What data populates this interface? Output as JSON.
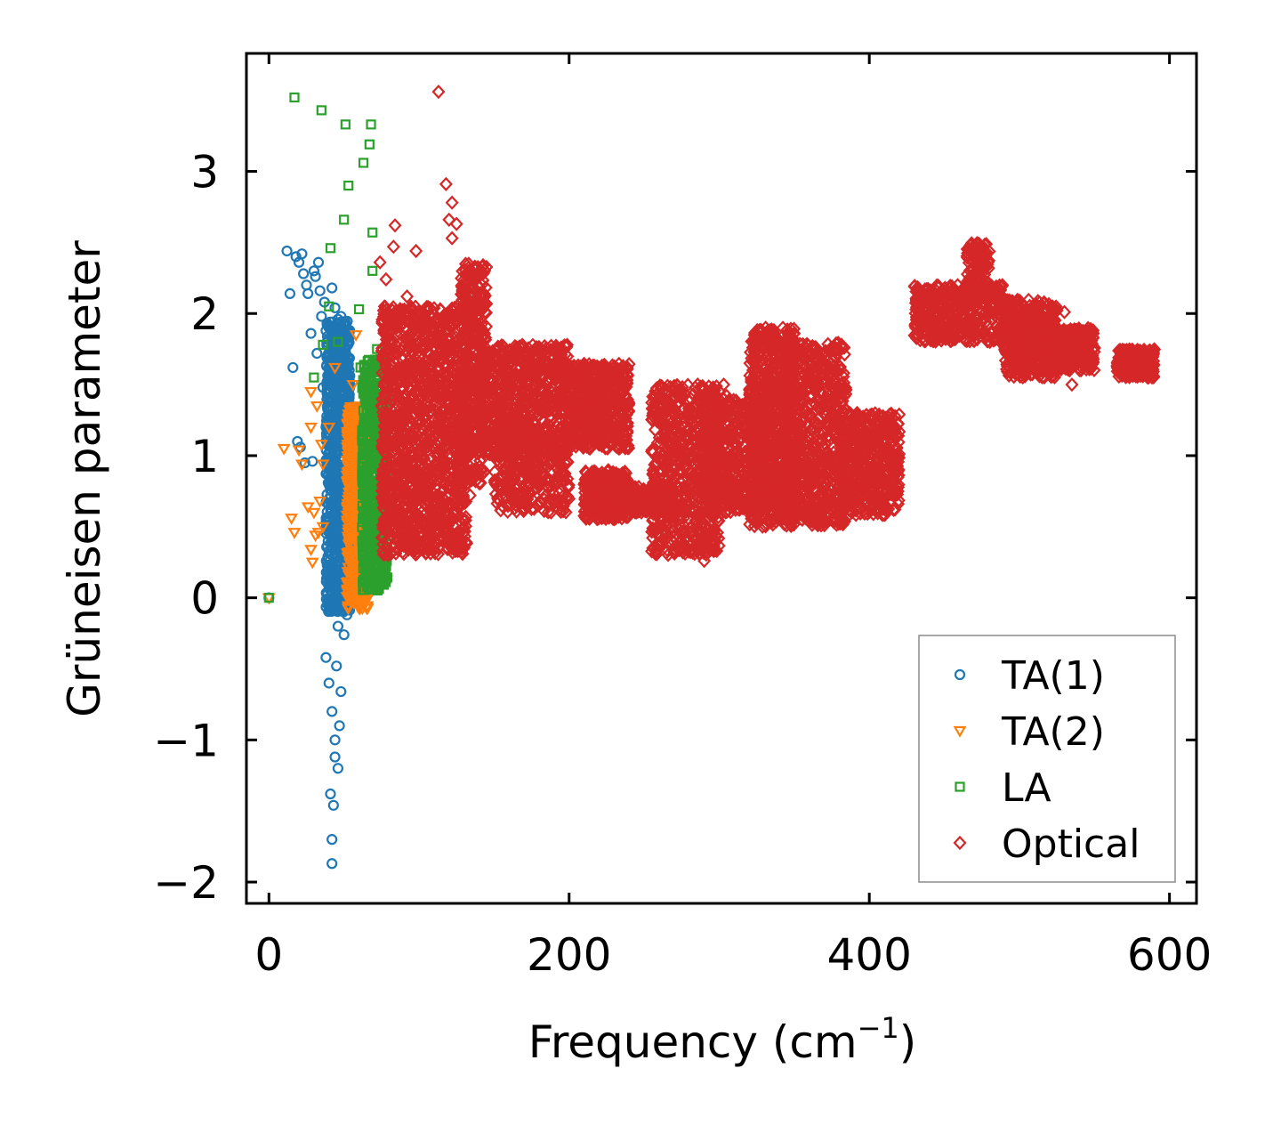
{
  "chart_data": {
    "type": "scatter",
    "title": "",
    "xlabel": "Frequency (cm",
    "xlabel_sup": "−1",
    "xlabel_close": ")",
    "ylabel": "Grüneisen parameter",
    "xlim": [
      -15,
      618
    ],
    "ylim": [
      -2.15,
      3.83
    ],
    "xticks": [
      0,
      200,
      400,
      600
    ],
    "xtick_labels": [
      "0",
      "200",
      "400",
      "600"
    ],
    "yticks": [
      -2,
      -1,
      0,
      1,
      2,
      3
    ],
    "ytick_labels": [
      "−2",
      "−1",
      "0",
      "1",
      "2",
      "3"
    ],
    "grid": false,
    "legend_position": "lower-right",
    "series": [
      {
        "name": "TA(1)",
        "marker": "circle",
        "color": "#1f77b4",
        "points": [
          [
            0,
            0
          ],
          [
            12,
            2.44
          ],
          [
            14,
            2.14
          ],
          [
            16,
            1.62
          ],
          [
            18,
            2.4
          ],
          [
            19,
            1.1
          ],
          [
            20,
            2.36
          ],
          [
            21,
            1.06
          ],
          [
            22,
            2.42
          ],
          [
            23,
            2.28
          ],
          [
            25,
            2.2
          ],
          [
            26,
            2.14
          ],
          [
            24,
            0.95
          ],
          [
            28,
            1.86
          ],
          [
            29,
            0.96
          ],
          [
            30,
            2.3
          ],
          [
            31,
            2.26
          ],
          [
            32,
            1.72
          ],
          [
            33,
            2.36
          ],
          [
            34,
            2.16
          ],
          [
            35,
            1.98
          ],
          [
            36,
            1.48
          ],
          [
            37,
            2.08
          ],
          [
            38,
            1.88
          ],
          [
            40,
            1.9
          ],
          [
            42,
            2.18
          ],
          [
            44,
            2.04
          ],
          [
            46,
            1.96
          ],
          [
            48,
            1.98
          ],
          [
            50,
            1.52
          ],
          [
            38,
            1.2
          ],
          [
            40,
            0.8
          ],
          [
            42,
            0.4
          ],
          [
            44,
            0.1
          ],
          [
            46,
            -0.2
          ],
          [
            38,
            -0.42
          ],
          [
            40,
            -0.6
          ],
          [
            42,
            -0.8
          ],
          [
            44,
            -1.0
          ],
          [
            46,
            -1.2
          ],
          [
            41,
            -1.38
          ],
          [
            43,
            -1.46
          ],
          [
            42,
            -1.7
          ],
          [
            42,
            -1.87
          ],
          [
            44,
            -1.12
          ],
          [
            48,
            -0.66
          ],
          [
            50,
            -0.26
          ],
          [
            52,
            -0.12
          ],
          [
            47,
            -0.9
          ],
          [
            45,
            -0.48
          ]
        ],
        "bands": [
          {
            "x": [
              38,
              54
            ],
            "y": [
              -0.1,
              1.95
            ],
            "count": 900
          }
        ]
      },
      {
        "name": "TA(2)",
        "marker": "triangle-down",
        "color": "#ff7f0e",
        "points": [
          [
            0,
            0
          ],
          [
            10,
            1.05
          ],
          [
            15,
            0.56
          ],
          [
            17,
            0.46
          ],
          [
            20,
            1.04
          ],
          [
            22,
            0.94
          ],
          [
            26,
            0.64
          ],
          [
            28,
            1.2
          ],
          [
            28,
            0.34
          ],
          [
            29,
            0.25
          ],
          [
            30,
            0.6
          ],
          [
            31,
            0.44
          ],
          [
            33,
            0.46
          ],
          [
            34,
            0.68
          ],
          [
            35,
            1.08
          ],
          [
            36,
            0.94
          ],
          [
            28,
            1.45
          ],
          [
            32,
            1.35
          ],
          [
            36,
            0.5
          ],
          [
            40,
            1.2
          ],
          [
            44,
            1.62
          ],
          [
            58,
            1.85
          ],
          [
            56,
            1.5
          ]
        ],
        "bands": [
          {
            "x": [
              52,
              66
            ],
            "y": [
              -0.08,
              1.35
            ],
            "count": 700
          }
        ]
      },
      {
        "name": "LA",
        "marker": "square",
        "color": "#2ca02c",
        "points": [
          [
            0,
            0
          ],
          [
            17,
            3.52
          ],
          [
            35,
            3.43
          ],
          [
            51,
            3.33
          ],
          [
            68,
            3.33
          ],
          [
            67,
            3.19
          ],
          [
            63,
            3.06
          ],
          [
            53,
            2.9
          ],
          [
            50,
            2.66
          ],
          [
            69,
            2.57
          ],
          [
            41,
            2.46
          ],
          [
            69,
            2.3
          ],
          [
            60,
            2.03
          ],
          [
            40,
            2.05
          ],
          [
            36,
            1.78
          ],
          [
            30,
            1.55
          ],
          [
            72,
            1.75
          ],
          [
            61,
            1.62
          ],
          [
            46,
            1.8
          ],
          [
            66,
            0.2
          ],
          [
            68,
            0.1
          ],
          [
            72,
            0.06
          ]
        ],
        "bands": [
          {
            "x": [
              62,
              79
            ],
            "y": [
              0.05,
              1.68
            ],
            "count": 600
          }
        ]
      },
      {
        "name": "Optical",
        "marker": "diamond",
        "color": "#d62728",
        "points": [
          [
            113,
            3.56
          ],
          [
            118,
            2.91
          ],
          [
            122,
            2.78
          ],
          [
            120,
            2.66
          ],
          [
            125,
            2.63
          ],
          [
            122,
            2.53
          ],
          [
            84,
            2.62
          ],
          [
            83,
            2.47
          ],
          [
            74,
            2.36
          ],
          [
            78,
            2.24
          ],
          [
            98,
            2.44
          ],
          [
            92,
            2.12
          ],
          [
            87,
            2.02
          ],
          [
            134,
            0.72
          ],
          [
            290,
            0.26
          ],
          [
            303,
            1.5
          ],
          [
            305,
            1.42
          ],
          [
            320,
            1.4
          ],
          [
            530,
            2.01
          ],
          [
            535,
            1.5
          ],
          [
            545,
            1.75
          ]
        ],
        "bands": [
          {
            "x": [
              75,
              132
            ],
            "y": [
              0.3,
              2.05
            ],
            "count": 1400
          },
          {
            "x": [
              128,
              145
            ],
            "y": [
              0.8,
              2.35
            ],
            "count": 400
          },
          {
            "x": [
              140,
              200
            ],
            "y": [
              1.0,
              1.78
            ],
            "count": 700
          },
          {
            "x": [
              150,
              200
            ],
            "y": [
              0.6,
              1.2
            ],
            "count": 350
          },
          {
            "x": [
              200,
              240
            ],
            "y": [
              1.05,
              1.65
            ],
            "count": 500
          },
          {
            "x": [
              210,
              240
            ],
            "y": [
              0.55,
              0.9
            ],
            "count": 300
          },
          {
            "x": [
              240,
              270
            ],
            "y": [
              0.6,
              0.78
            ],
            "count": 250
          },
          {
            "x": [
              255,
              300
            ],
            "y": [
              0.3,
              1.5
            ],
            "count": 700
          },
          {
            "x": [
              290,
              330
            ],
            "y": [
              0.6,
              1.4
            ],
            "count": 500
          },
          {
            "x": [
              320,
              350
            ],
            "y": [
              0.5,
              1.9
            ],
            "count": 800
          },
          {
            "x": [
              345,
              385
            ],
            "y": [
              0.5,
              1.8
            ],
            "count": 700
          },
          {
            "x": [
              380,
              420
            ],
            "y": [
              0.58,
              1.3
            ],
            "count": 500
          },
          {
            "x": [
              430,
              490
            ],
            "y": [
              1.8,
              2.2
            ],
            "count": 450
          },
          {
            "x": [
              465,
              480
            ],
            "y": [
              2.15,
              2.5
            ],
            "count": 120
          },
          {
            "x": [
              490,
              525
            ],
            "y": [
              1.55,
              2.1
            ],
            "count": 450
          },
          {
            "x": [
              525,
              550
            ],
            "y": [
              1.6,
              1.9
            ],
            "count": 250
          },
          {
            "x": [
              565,
              590
            ],
            "y": [
              1.55,
              1.75
            ],
            "count": 250
          }
        ]
      }
    ]
  }
}
